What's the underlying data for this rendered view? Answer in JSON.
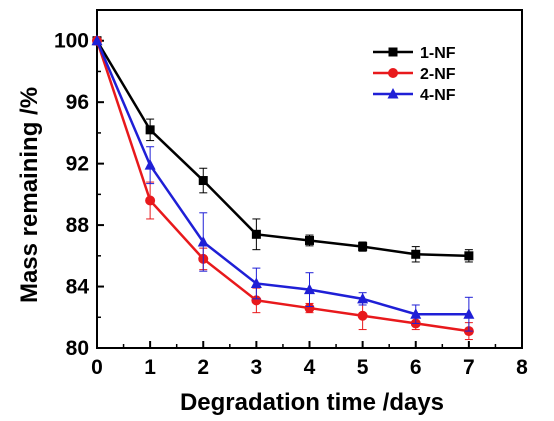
{
  "chart_data": {
    "type": "line",
    "xlabel": "Degradation time /days",
    "ylabel": "Mass remaining /%",
    "xlim": [
      0,
      8
    ],
    "ylim": [
      80,
      102
    ],
    "x_ticks": [
      0,
      1,
      2,
      3,
      4,
      5,
      6,
      7,
      8
    ],
    "y_ticks": [
      80,
      84,
      88,
      92,
      96,
      100
    ],
    "grid": false,
    "legend_position": "top-right",
    "x": [
      0,
      1,
      2,
      3,
      4,
      5,
      6,
      7
    ],
    "series": [
      {
        "name": "1-NF",
        "color": "#000000",
        "marker": "square",
        "values": [
          100,
          94.2,
          90.9,
          87.4,
          87.0,
          86.6,
          86.1,
          86.0
        ],
        "errors": [
          0,
          0.7,
          0.8,
          1.0,
          0.35,
          0.3,
          0.5,
          0.4
        ]
      },
      {
        "name": "2-NF",
        "color": "#e8191c",
        "marker": "circle",
        "values": [
          100,
          89.6,
          85.8,
          83.1,
          82.6,
          82.1,
          81.6,
          81.1
        ],
        "errors": [
          0,
          1.2,
          0.7,
          0.8,
          0.3,
          0.9,
          0.4,
          0.55
        ]
      },
      {
        "name": "4-NF",
        "color": "#1f1fd6",
        "marker": "triangle",
        "values": [
          100,
          91.9,
          86.9,
          84.2,
          83.8,
          83.2,
          82.2,
          82.2
        ],
        "errors": [
          0,
          1.2,
          1.9,
          1.0,
          1.1,
          0.4,
          0.6,
          1.1
        ]
      }
    ]
  }
}
